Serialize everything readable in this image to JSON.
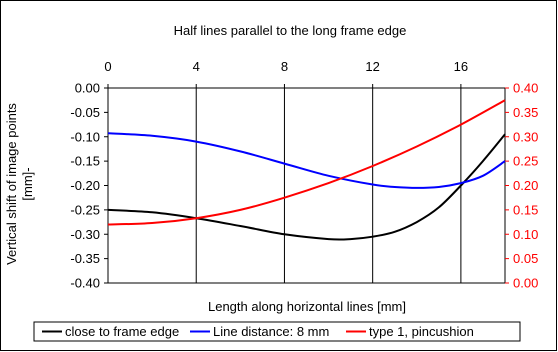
{
  "chart_data": {
    "type": "line",
    "title": "Half lines parallel to the long frame edge",
    "xlabel": "Length along horizontal lines [mm]",
    "ylabel_line1": "Vertical shift of image points",
    "ylabel_line2": "[mm]-",
    "xlim": [
      0,
      18
    ],
    "x_ticks": [
      "0",
      "4",
      "8",
      "12",
      "16"
    ],
    "x_tick_values": [
      0,
      4,
      8,
      12,
      16
    ],
    "x_axis_position": "top",
    "ylim_left": [
      -0.4,
      0.0
    ],
    "y_left_ticks": [
      "0.00",
      "-0.05",
      "-0.10",
      "-0.15",
      "-0.20",
      "-0.25",
      "-0.30",
      "-0.35",
      "-0.40"
    ],
    "y_left_tick_values": [
      0.0,
      -0.05,
      -0.1,
      -0.15,
      -0.2,
      -0.25,
      -0.3,
      -0.35,
      -0.4
    ],
    "ylim_right": [
      0.0,
      0.4
    ],
    "y_right_ticks": [
      "0.40",
      "0.35",
      "0.30",
      "0.25",
      "0.20",
      "0.15",
      "0.10",
      "0.05",
      "0.00"
    ],
    "y_right_tick_values": [
      0.4,
      0.35,
      0.3,
      0.25,
      0.2,
      0.15,
      0.1,
      0.05,
      0.0
    ],
    "grid": "vertical",
    "legend_position": "bottom",
    "colors": {
      "black": "#000000",
      "blue": "#0000ff",
      "red": "#ff0000"
    },
    "series": [
      {
        "name": "close to frame edge",
        "color": "#000000",
        "axis": "left",
        "x": [
          0,
          2,
          4,
          6,
          8,
          10,
          11,
          12,
          13,
          14,
          15,
          16,
          17,
          18
        ],
        "y": [
          -0.25,
          -0.255,
          -0.267,
          -0.283,
          -0.3,
          -0.31,
          -0.31,
          -0.305,
          -0.295,
          -0.275,
          -0.245,
          -0.2,
          -0.15,
          -0.095
        ]
      },
      {
        "name": "Line distance: 8 mm",
        "color": "#0000ff",
        "axis": "left",
        "x": [
          0,
          2,
          4,
          6,
          8,
          10,
          12,
          13,
          14,
          15,
          16,
          17,
          18
        ],
        "y": [
          -0.093,
          -0.098,
          -0.11,
          -0.13,
          -0.155,
          -0.18,
          -0.198,
          -0.203,
          -0.205,
          -0.203,
          -0.195,
          -0.18,
          -0.15
        ]
      },
      {
        "name": "type 1, pincushion",
        "color": "#ff0000",
        "axis": "right",
        "x": [
          0,
          2,
          4,
          6,
          8,
          10,
          12,
          14,
          16,
          18
        ],
        "y": [
          0.12,
          0.123,
          0.133,
          0.15,
          0.175,
          0.205,
          0.24,
          0.28,
          0.325,
          0.375
        ]
      }
    ]
  }
}
